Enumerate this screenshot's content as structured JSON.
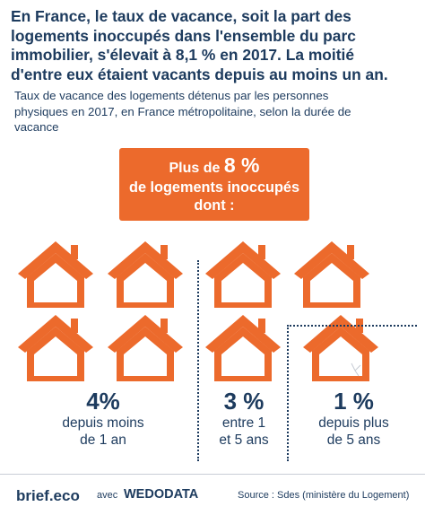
{
  "headline": {
    "lines": [
      "En France, le taux de vacance, soit la part des",
      "logements inoccupés dans l'ensemble du parc",
      "immobilier, s'élevait à 8,1 % en 2017. La moitié",
      "d'entre eux étaient vacants depuis au moins un an."
    ]
  },
  "subtitle": {
    "lines": [
      "Taux de vacance des logements détenus par les personnes",
      "physiques en 2017, en France métropolitaine, selon la durée de",
      "vacance"
    ]
  },
  "banner": {
    "prefix": "Plus de ",
    "value": "8 %",
    "line2": "de logements inoccupés",
    "line3": "dont :"
  },
  "colors": {
    "accent": "#ec6a2c",
    "text": "#1d3b5e"
  },
  "stats": [
    {
      "value": "4%",
      "desc_line1": "depuis moins",
      "desc_line2": "de 1 an"
    },
    {
      "value": "3 %",
      "desc_line1": "entre 1",
      "desc_line2": "et 5 ans"
    },
    {
      "value": "1 %",
      "desc_line1": "depuis plus",
      "desc_line2": "de 5 ans"
    }
  ],
  "footer": {
    "brand": "brief.eco",
    "avec": "avec",
    "partner": "WEDODATA",
    "source": "Source : Sdes (ministère du Logement)"
  }
}
